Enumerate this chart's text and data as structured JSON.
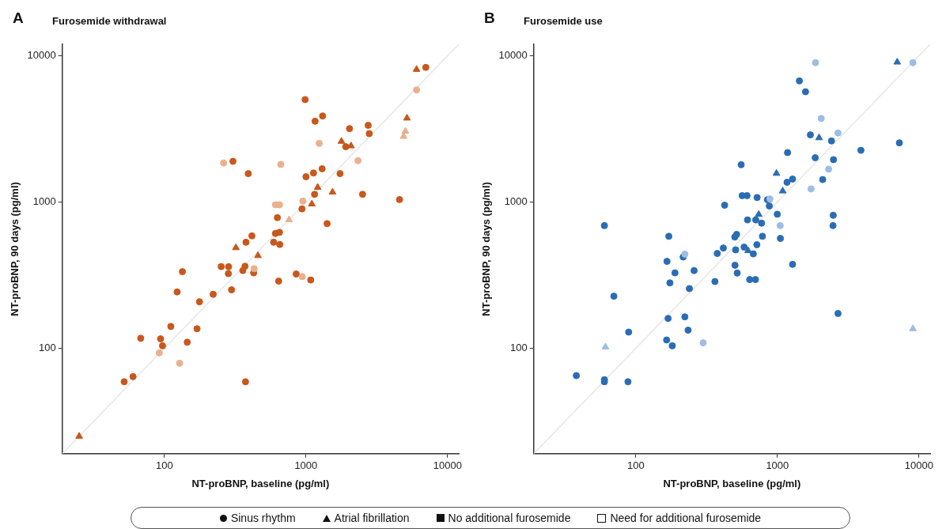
{
  "chart_data": [
    {
      "type": "scatter",
      "title": "Furosemide withdrawal",
      "annotations": [
        "A"
      ],
      "xlabel": "NT-proBNP, baseline (pg/ml)",
      "ylabel": "NT-proBNP, 90 days (pg/ml)",
      "log": "xy",
      "xlim": [
        19,
        12000
      ],
      "ylim": [
        19,
        12000
      ],
      "xticks": [
        100,
        1000,
        10000
      ],
      "yticks": [
        100,
        1000,
        10000
      ],
      "series": [
        {
          "type": "line",
          "marker": "none",
          "color": "#e6e6e6",
          "x": [
            19,
            12000
          ],
          "values": [
            19,
            12000
          ]
        },
        {
          "marker": "circle",
          "color": "#c8581c",
          "x": [
            7020,
            986,
            1310,
            1160,
            2030,
            2750,
            2800,
            1910,
            305,
            391,
            1000,
            1130,
            1300,
            1740,
            1150,
            2510,
            4580,
            937,
            628,
            1410,
            609,
            650,
            415,
            377,
            591,
            653,
            252,
            284,
            371,
            358,
            283,
            427,
            134,
            853,
            1080,
            641,
            298,
            221,
            123,
            177,
            111,
            170,
            68,
            94,
            97,
            145,
            52,
            60,
            374
          ],
          "values": [
            8340,
            5020,
            3880,
            3570,
            3180,
            3350,
            2940,
            2390,
            1900,
            1565,
            1490,
            1580,
            1690,
            1565,
            1130,
            1130,
            1040,
            898,
            782,
            712,
            610,
            621,
            587,
            531,
            531,
            513,
            362,
            361,
            364,
            340,
            324,
            328,
            334,
            322,
            293,
            288,
            251,
            234,
            243,
            208,
            141,
            136,
            117,
            116,
            104,
            110,
            59,
            64,
            59
          ]
        },
        {
          "marker": "triangle",
          "color": "#c8581c",
          "x": [
            6040,
            5170,
            1780,
            2080,
            1210,
            1540,
            1100,
            320,
            458,
            25
          ],
          "values": [
            8070,
            3750,
            2600,
            2420,
            1260,
            1170,
            970,
            487,
            430,
            25
          ]
        },
        {
          "marker": "circle",
          "color": "#eab08e",
          "x": [
            6040,
            1240,
            262,
            664,
            2330,
            950,
            609,
            650,
            430,
            941,
            92,
            128
          ],
          "values": [
            5840,
            2520,
            1850,
            1810,
            1920,
            1017,
            958,
            958,
            350,
            309,
            93,
            79
          ]
        },
        {
          "marker": "triangle",
          "color": "#eab08e",
          "x": [
            5040,
            4890,
            759
          ],
          "values": [
            3050,
            2810,
            756
          ]
        }
      ]
    },
    {
      "type": "scatter",
      "title": "Furosemide use",
      "annotations": [
        "B"
      ],
      "xlabel": "NT-proBNP, baseline (pg/ml)",
      "ylabel": "NT-proBNP, 90 days (pg/ml)",
      "log": "xy",
      "xlim": [
        19,
        12000
      ],
      "ylim": [
        19,
        12000
      ],
      "xticks": [
        100,
        1000,
        10000
      ],
      "yticks": [
        100,
        1000,
        10000
      ],
      "series": [
        {
          "type": "line",
          "marker": "none",
          "color": "#e6e6e6",
          "x": [
            19,
            12000
          ],
          "values": [
            19,
            12000
          ]
        },
        {
          "marker": "circle",
          "color": "#2a6db5",
          "x": [
            1430,
            1580,
            1710,
            2410,
            7270,
            3890,
            1180,
            1850,
            2490,
            555,
            2090,
            1280,
            1170,
            564,
            610,
            719,
            851,
            424,
            877,
            998,
            2480,
            615,
            703,
            773,
            2470,
            60,
            171,
            500,
            515,
            784,
            1050,
            582,
            716,
            676,
            415,
            376,
            507,
            216,
            166,
            502,
            1280,
            189,
            258,
            520,
            174,
            362,
            637,
            700,
            239,
            70,
            2680,
            169,
            222,
            89,
            234,
            165,
            181,
            38,
            60,
            60,
            88
          ],
          "values": [
            6740,
            5680,
            2880,
            2620,
            2540,
            2260,
            2180,
            2010,
            1950,
            1800,
            1425,
            1437,
            1365,
            1107,
            1107,
            1074,
            1037,
            952,
            940,
            826,
            812,
            755,
            755,
            717,
            690,
            690,
            583,
            576,
            601,
            583,
            564,
            492,
            511,
            442,
            485,
            445,
            471,
            421,
            393,
            370,
            375,
            328,
            340,
            327,
            280,
            286,
            295,
            295,
            256,
            227,
            173,
            160,
            164,
            129,
            133,
            114,
            104,
            65,
            61,
            59,
            59
          ]
        },
        {
          "marker": "triangle",
          "color": "#2a6db5",
          "x": [
            7020,
            1970,
            985,
            1090,
            738,
            621
          ],
          "values": [
            9060,
            2750,
            1570,
            1190,
            823,
            465
          ]
        },
        {
          "marker": "circle",
          "color": "#9dbde2",
          "x": [
            1860,
            9060,
            2040,
            2680,
            2300,
            1730,
            885,
            1046,
            222,
            299
          ],
          "values": [
            8980,
            8980,
            3730,
            2970,
            1680,
            1230,
            1050,
            690,
            440,
            109
          ]
        },
        {
          "marker": "triangle",
          "color": "#9dbde2",
          "x": [
            9060,
            61
          ],
          "values": [
            136,
            102
          ]
        }
      ]
    },
    {
      "type": "other",
      "annotations": [
        "Sinus rhythm",
        "Atrial fibrillation",
        "No additional furosemide",
        "Need for additional furosemide"
      ]
    }
  ]
}
